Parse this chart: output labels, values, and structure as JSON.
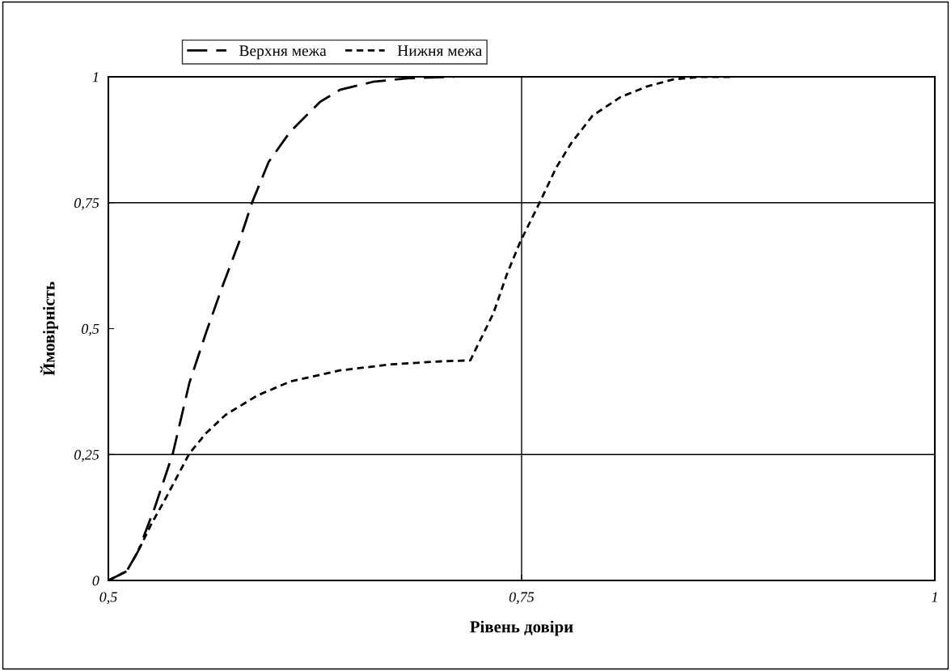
{
  "chart_data": {
    "type": "line",
    "xlabel": "Рівень довіри",
    "ylabel": "Ймовірність",
    "xlim": [
      0.5,
      1
    ],
    "xticks": [
      {
        "value": 0.5,
        "label": "0,5"
      },
      {
        "value": 0.75,
        "label": "0,75"
      },
      {
        "value": 1,
        "label": "1"
      }
    ],
    "ylim": [
      0,
      1
    ],
    "yticks": [
      {
        "value": 0,
        "label": "0"
      },
      {
        "value": 0.25,
        "label": "0,25"
      },
      {
        "value": 0.5,
        "label": "0,5"
      },
      {
        "value": 0.75,
        "label": "0,75"
      },
      {
        "value": 1,
        "label": "1"
      }
    ],
    "grid": false,
    "legend": "top",
    "marker": "none",
    "ref_lines": [
      {
        "axis": "y",
        "value": 0.25,
        "color": "#000000",
        "line_style": "solid"
      },
      {
        "axis": "y",
        "value": 0.75,
        "color": "#000000",
        "line_style": "solid"
      },
      {
        "axis": "x",
        "value": 0.75,
        "color": "#000000",
        "line_style": "solid"
      }
    ],
    "series": [
      {
        "name": "Верхня межа",
        "color": "#000000",
        "line_style": "dashed",
        "x": [
          0.5,
          0.511,
          0.518,
          0.528,
          0.539,
          0.549,
          0.559,
          0.569,
          0.579,
          0.587,
          0.597,
          0.61,
          0.628,
          0.64,
          0.66,
          0.681,
          0.709
        ],
        "values": [
          0,
          0.018,
          0.058,
          0.144,
          0.252,
          0.392,
          0.491,
          0.584,
          0.671,
          0.751,
          0.831,
          0.891,
          0.95,
          0.974,
          0.99,
          0.997,
          1.0
        ]
      },
      {
        "name": "Нижня межа",
        "color": "#000000",
        "line_style": "dotted",
        "x": [
          0.5,
          0.511,
          0.518,
          0.526,
          0.535,
          0.549,
          0.559,
          0.571,
          0.59,
          0.61,
          0.64,
          0.671,
          0.701,
          0.719,
          0.733,
          0.741,
          0.749,
          0.761,
          0.771,
          0.78,
          0.793,
          0.81,
          0.826,
          0.842,
          0.859,
          0.878
        ],
        "values": [
          0,
          0.018,
          0.058,
          0.112,
          0.165,
          0.252,
          0.292,
          0.329,
          0.367,
          0.395,
          0.417,
          0.429,
          0.435,
          0.437,
          0.531,
          0.607,
          0.671,
          0.751,
          0.82,
          0.868,
          0.923,
          0.96,
          0.981,
          0.995,
          1.0,
          1.0
        ]
      }
    ]
  }
}
